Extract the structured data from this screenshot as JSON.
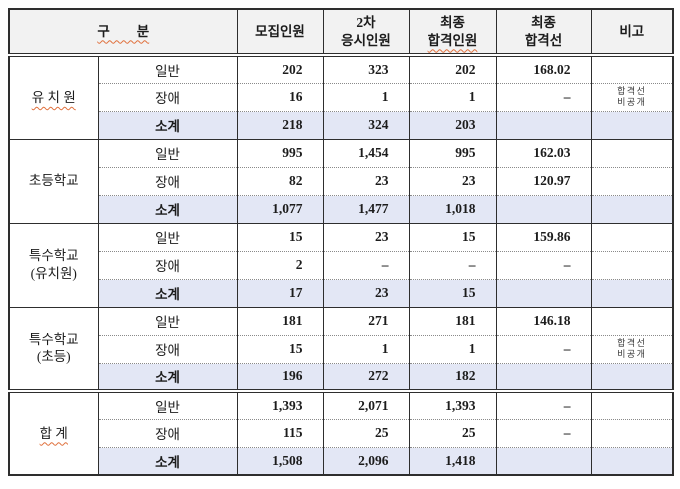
{
  "header": {
    "category": "구　　분",
    "recruit": "모집인원",
    "second_round": [
      "2차",
      "응시인원"
    ],
    "final_pass": [
      "최종",
      "합격인원"
    ],
    "final_cutline": [
      "최종",
      "합격선"
    ],
    "note": "비고"
  },
  "groups": [
    {
      "name": "유 치 원",
      "spellcheck_underline": true,
      "separator": "solid",
      "rows": [
        {
          "label": "일반",
          "recruit": "202",
          "second": "323",
          "pass": "202",
          "cutline": "168.02",
          "note": ""
        },
        {
          "label": "장애",
          "recruit": "16",
          "second": "1",
          "pass": "1",
          "cutline": "–",
          "note": "합격선\n비공개"
        },
        {
          "label": "소계",
          "recruit": "218",
          "second": "324",
          "pass": "203",
          "cutline": "",
          "note": "",
          "subtotal": true
        }
      ]
    },
    {
      "name": "초등학교",
      "spellcheck_underline": false,
      "separator": "solid",
      "rows": [
        {
          "label": "일반",
          "recruit": "995",
          "second": "1,454",
          "pass": "995",
          "cutline": "162.03",
          "note": ""
        },
        {
          "label": "장애",
          "recruit": "82",
          "second": "23",
          "pass": "23",
          "cutline": "120.97",
          "note": ""
        },
        {
          "label": "소계",
          "recruit": "1,077",
          "second": "1,477",
          "pass": "1,018",
          "cutline": "",
          "note": "",
          "subtotal": true
        }
      ]
    },
    {
      "name": "특수학교\n(유치원)",
      "spellcheck_underline": false,
      "separator": "solid",
      "rows": [
        {
          "label": "일반",
          "recruit": "15",
          "second": "23",
          "pass": "15",
          "cutline": "159.86",
          "note": ""
        },
        {
          "label": "장애",
          "recruit": "2",
          "second": "–",
          "pass": "–",
          "cutline": "–",
          "note": ""
        },
        {
          "label": "소계",
          "recruit": "17",
          "second": "23",
          "pass": "15",
          "cutline": "",
          "note": "",
          "subtotal": true
        }
      ]
    },
    {
      "name": "특수학교\n(초등)",
      "spellcheck_underline": false,
      "separator": "solid",
      "rows": [
        {
          "label": "일반",
          "recruit": "181",
          "second": "271",
          "pass": "181",
          "cutline": "146.18",
          "note": ""
        },
        {
          "label": "장애",
          "recruit": "15",
          "second": "1",
          "pass": "1",
          "cutline": "–",
          "note": "합격선\n비공개"
        },
        {
          "label": "소계",
          "recruit": "196",
          "second": "272",
          "pass": "182",
          "cutline": "",
          "note": "",
          "subtotal": true
        }
      ]
    },
    {
      "name": "합 계",
      "spellcheck_underline": true,
      "separator": "double",
      "rows": [
        {
          "label": "일반",
          "recruit": "1,393",
          "second": "2,071",
          "pass": "1,393",
          "cutline": "–",
          "note": ""
        },
        {
          "label": "장애",
          "recruit": "115",
          "second": "25",
          "pass": "25",
          "cutline": "–",
          "note": ""
        },
        {
          "label": "소계",
          "recruit": "1,508",
          "second": "2,096",
          "pass": "1,418",
          "cutline": "",
          "note": "",
          "subtotal": true
        }
      ]
    }
  ],
  "colors": {
    "subtotal_row_bg": "#e3e7f5",
    "header_bg": "#f2f2f2",
    "border": "#2e2e2e",
    "spellcheck_underline": "#e0703c"
  }
}
